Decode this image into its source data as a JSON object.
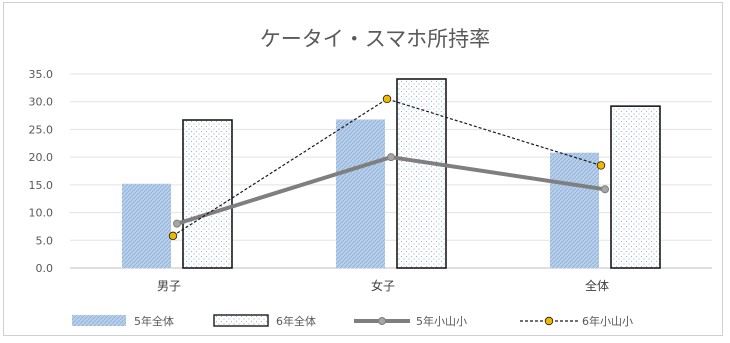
{
  "chart_data": {
    "type": "bar",
    "title": "ケータイ・スマホ所持率",
    "categories": [
      "男子",
      "女子",
      "全体"
    ],
    "ylim": [
      0,
      35
    ],
    "yticks": [
      "0.0",
      "5.0",
      "10.0",
      "15.0",
      "20.0",
      "25.0",
      "30.0",
      "35.0"
    ],
    "grid": true,
    "legend_position": "bottom",
    "series": [
      {
        "name": "5年全体",
        "kind": "bar",
        "values": [
          15.2,
          26.8,
          20.8
        ],
        "color": "#a9c4e4"
      },
      {
        "name": "6年全体",
        "kind": "bar",
        "values": [
          26.7,
          34.1,
          29.2
        ],
        "color": "#ffffff"
      },
      {
        "name": "5年小山小",
        "kind": "line",
        "values": [
          8.0,
          20.0,
          14.2
        ],
        "color": "#7f7f7f"
      },
      {
        "name": "6年小山小",
        "kind": "line",
        "values": [
          5.8,
          30.5,
          18.5
        ],
        "color": "#1a1a1a",
        "marker_color": "#f2b800"
      }
    ]
  }
}
